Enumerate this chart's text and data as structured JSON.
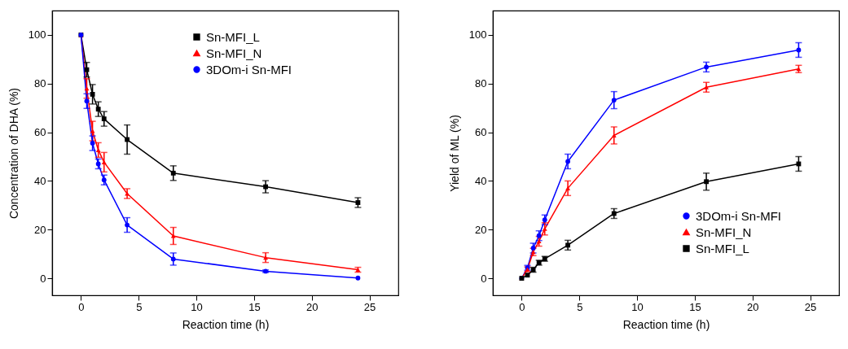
{
  "chart_data": [
    {
      "type": "line",
      "xlabel": "Reaction time (h)",
      "ylabel": "Concentration of DHA (%)",
      "x": [
        0,
        0.5,
        1,
        1.5,
        2,
        4,
        8,
        16,
        24
      ],
      "xlim": [
        -2.5,
        27.5
      ],
      "xticks": [
        0,
        5,
        10,
        15,
        20,
        25
      ],
      "ylim": [
        -7,
        110
      ],
      "yticks": [
        0,
        20,
        40,
        60,
        80,
        100
      ],
      "grid": false,
      "legend": "top right",
      "series": [
        {
          "name": "Sn-MFI_L",
          "color": "#000000",
          "marker": "square",
          "values": [
            100,
            85.7,
            75.6,
            69.5,
            65.5,
            57,
            43.2,
            37.6,
            31.1
          ],
          "errors": [
            null,
            3,
            4,
            3,
            3,
            6,
            3,
            2.5,
            2
          ]
        },
        {
          "name": "Sn-MFI_N",
          "color": "#ff0000",
          "marker": "triangle",
          "values": [
            100,
            78,
            60.5,
            52.7,
            47.7,
            34.8,
            17.4,
            8.5,
            3.5
          ],
          "errors": [
            null,
            4,
            4,
            3,
            4,
            2,
            3.5,
            2,
            1
          ]
        },
        {
          "name": "3DOm-i Sn-MFI",
          "color": "#0000ff",
          "marker": "circle",
          "values": [
            100,
            72.8,
            55.5,
            47,
            40.4,
            21.9,
            7.9,
            2.9,
            0.1
          ],
          "errors": [
            null,
            3,
            3,
            2,
            2,
            3,
            2.5,
            0.5,
            null
          ]
        }
      ]
    },
    {
      "type": "line",
      "xlabel": "Reaction time (h)",
      "ylabel": "Yield of ML (%)",
      "x": [
        0,
        0.5,
        1,
        1.5,
        2,
        4,
        8,
        16,
        24
      ],
      "xlim": [
        -2.5,
        27.5
      ],
      "xticks": [
        0,
        5,
        10,
        15,
        20,
        25
      ],
      "ylim": [
        -7,
        110
      ],
      "yticks": [
        0,
        20,
        40,
        60,
        80,
        100
      ],
      "grid": false,
      "legend": "bottom right",
      "series": [
        {
          "name": "3DOm-i Sn-MFI",
          "color": "#0000ff",
          "marker": "circle",
          "values": [
            0,
            4.3,
            12.4,
            17.5,
            24,
            48,
            73.2,
            86.8,
            93.8
          ],
          "errors": [
            null,
            1,
            2,
            2,
            2,
            3,
            3.5,
            2,
            3
          ]
        },
        {
          "name": "Sn-MFI_N",
          "color": "#ff0000",
          "marker": "triangle",
          "values": [
            0,
            3.7,
            10.8,
            15.2,
            20.3,
            37,
            58.7,
            78.5,
            86
          ],
          "errors": [
            null,
            1,
            1.5,
            2,
            2.5,
            3,
            3.5,
            2,
            1.5
          ]
        },
        {
          "name": "Sn-MFI_L",
          "color": "#000000",
          "marker": "square",
          "values": [
            0,
            1.3,
            3.5,
            6.4,
            8,
            13.6,
            26.6,
            39.7,
            47
          ],
          "errors": [
            null,
            null,
            1,
            1,
            1,
            2,
            2,
            3.5,
            3
          ]
        }
      ]
    }
  ]
}
